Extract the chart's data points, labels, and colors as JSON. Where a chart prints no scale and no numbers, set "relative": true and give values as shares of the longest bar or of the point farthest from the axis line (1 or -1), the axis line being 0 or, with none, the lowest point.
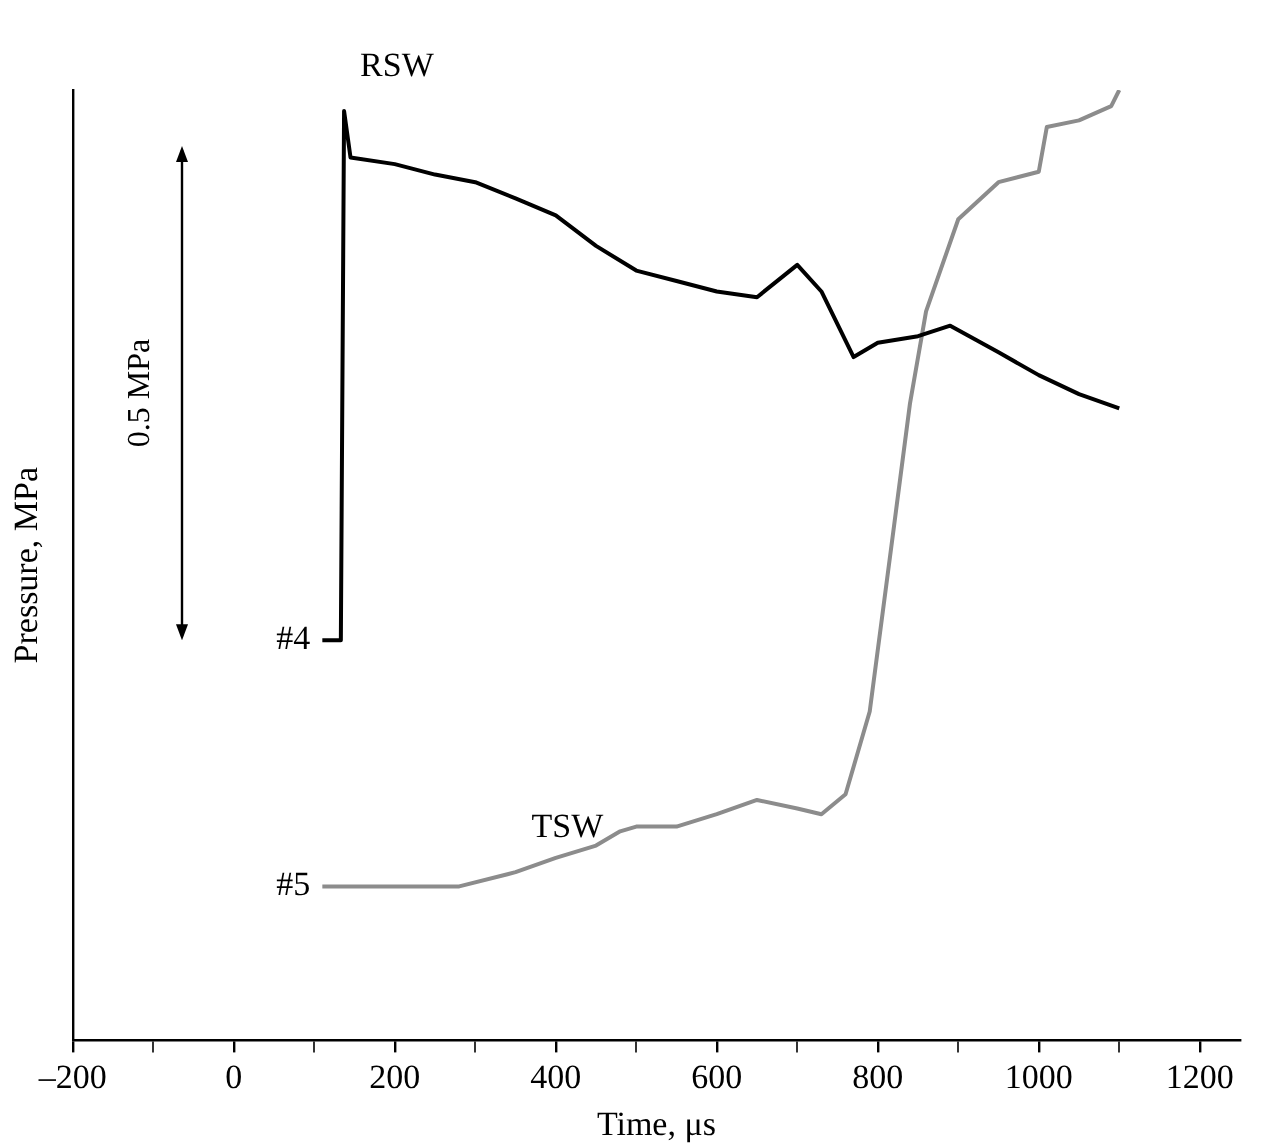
{
  "chart_data": {
    "type": "line",
    "relative": true,
    "xlabel": "Time, μs",
    "ylabel": "Pressure, MPa",
    "xlim": [
      -200,
      1250
    ],
    "xticks": [
      {
        "value": -200,
        "label": "–200"
      },
      {
        "value": -100,
        "label": null
      },
      0,
      {
        "value": 100,
        "label": null
      },
      200,
      {
        "value": 300,
        "label": null
      },
      400,
      {
        "value": 500,
        "label": null
      },
      600,
      {
        "value": 700,
        "label": null
      },
      800,
      {
        "value": 900,
        "label": null
      },
      1000,
      {
        "value": 1100,
        "label": null
      },
      1200
    ],
    "grid": false,
    "legend": false,
    "marker": "none",
    "line_style": "solid",
    "series": [
      {
        "name": "#4",
        "color": "#000000",
        "x": [
          110,
          133,
          137,
          145,
          200,
          250,
          300,
          350,
          400,
          450,
          500,
          550,
          600,
          650,
          700,
          730,
          770,
          800,
          850,
          890,
          950,
          1000,
          1050,
          1100
        ],
        "values": [
          0.421,
          0.421,
          0.978,
          0.929,
          0.922,
          0.911,
          0.903,
          0.886,
          0.868,
          0.836,
          0.81,
          0.799,
          0.788,
          0.782,
          0.816,
          0.788,
          0.719,
          0.734,
          0.741,
          0.752,
          0.724,
          0.7,
          0.68,
          0.665
        ]
      },
      {
        "name": "#5",
        "color": "#8c8c8c",
        "x": [
          110,
          280,
          350,
          400,
          450,
          480,
          500,
          550,
          600,
          650,
          700,
          730,
          760,
          790,
          820,
          840,
          860,
          900,
          950,
          1000,
          1010,
          1050,
          1090,
          1100
        ],
        "values": [
          0.162,
          0.162,
          0.177,
          0.192,
          0.205,
          0.22,
          0.225,
          0.225,
          0.238,
          0.253,
          0.244,
          0.238,
          0.259,
          0.346,
          0.54,
          0.67,
          0.767,
          0.864,
          0.903,
          0.914,
          0.961,
          0.968,
          0.983,
          1
        ]
      }
    ],
    "annotations": [
      "RSW",
      "TSW",
      "0.5 MPa"
    ]
  }
}
